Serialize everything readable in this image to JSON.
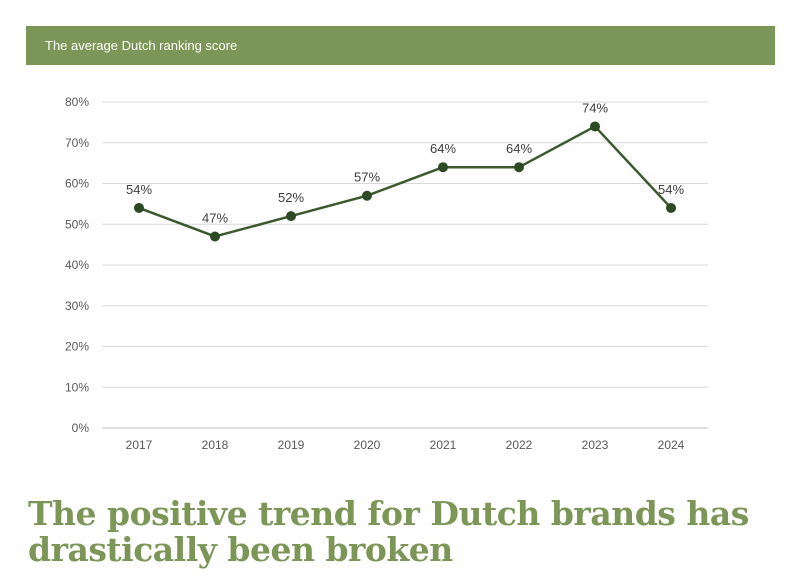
{
  "header": {
    "title": "The average Dutch ranking score"
  },
  "headline": {
    "line1": "The positive trend for Dutch brands has",
    "line2": "drastically been broken"
  },
  "colors": {
    "header_bg": "#7b9657",
    "line": "#3a5a2e",
    "marker": "#2e4a24",
    "grid": "#d9d9d9",
    "axis_text": "#595959",
    "data_label": "#3d3d3d",
    "headline": "#7b9657"
  },
  "chart_data": {
    "type": "line",
    "title": "The average Dutch ranking score",
    "xlabel": "",
    "ylabel": "",
    "categories": [
      "2017",
      "2018",
      "2019",
      "2020",
      "2021",
      "2022",
      "2023",
      "2024"
    ],
    "series": [
      {
        "name": "Average Dutch ranking score",
        "values": [
          54,
          47,
          52,
          57,
          64,
          64,
          74,
          54
        ],
        "labels": [
          "54%",
          "47%",
          "52%",
          "57%",
          "64%",
          "64%",
          "74%",
          "54%"
        ]
      }
    ],
    "ylim": [
      0,
      80
    ],
    "yticks": [
      "0%",
      "10%",
      "20%",
      "30%",
      "40%",
      "50%",
      "60%",
      "70%",
      "80%"
    ],
    "grid": true,
    "legend": "none"
  }
}
